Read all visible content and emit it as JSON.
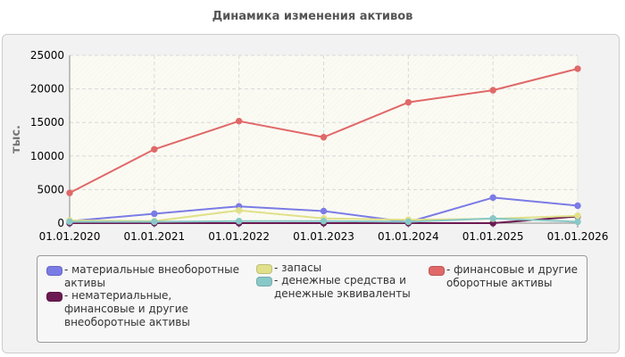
{
  "chart_data": {
    "type": "line",
    "title": "Динамика изменения активов",
    "xlabel": "",
    "ylabel": "тыс.",
    "x": [
      "01.01.2020",
      "01.01.2021",
      "01.01.2022",
      "01.01.2023",
      "01.01.2024",
      "01.01.2025",
      "01.01.2026"
    ],
    "ylim": [
      0,
      25000
    ],
    "yticks": [
      0,
      5000,
      10000,
      15000,
      20000,
      25000
    ],
    "grid": true,
    "legend_position": "bottom",
    "series": [
      {
        "name": "- материальные внеоборотные активы",
        "color": "#7b7be6",
        "values": [
          300,
          1400,
          2500,
          1800,
          150,
          3800,
          2600
        ]
      },
      {
        "name": "- нематериальные, финансовые и другие внеоборотные активы",
        "color": "#6b1a52",
        "values": [
          0,
          0,
          0,
          0,
          0,
          0,
          1000
        ]
      },
      {
        "name": "- запасы",
        "color": "#e0e08a",
        "values": [
          400,
          300,
          1900,
          700,
          500,
          650,
          1100
        ]
      },
      {
        "name": "- денежные средства и денежные эквиваленты",
        "color": "#88c8c8",
        "values": [
          200,
          200,
          300,
          300,
          200,
          700,
          200
        ]
      },
      {
        "name": "- финансовые и другие оборотные активы",
        "color": "#e06868",
        "values": [
          4500,
          11000,
          15200,
          12800,
          18000,
          19800,
          23000
        ]
      }
    ]
  }
}
